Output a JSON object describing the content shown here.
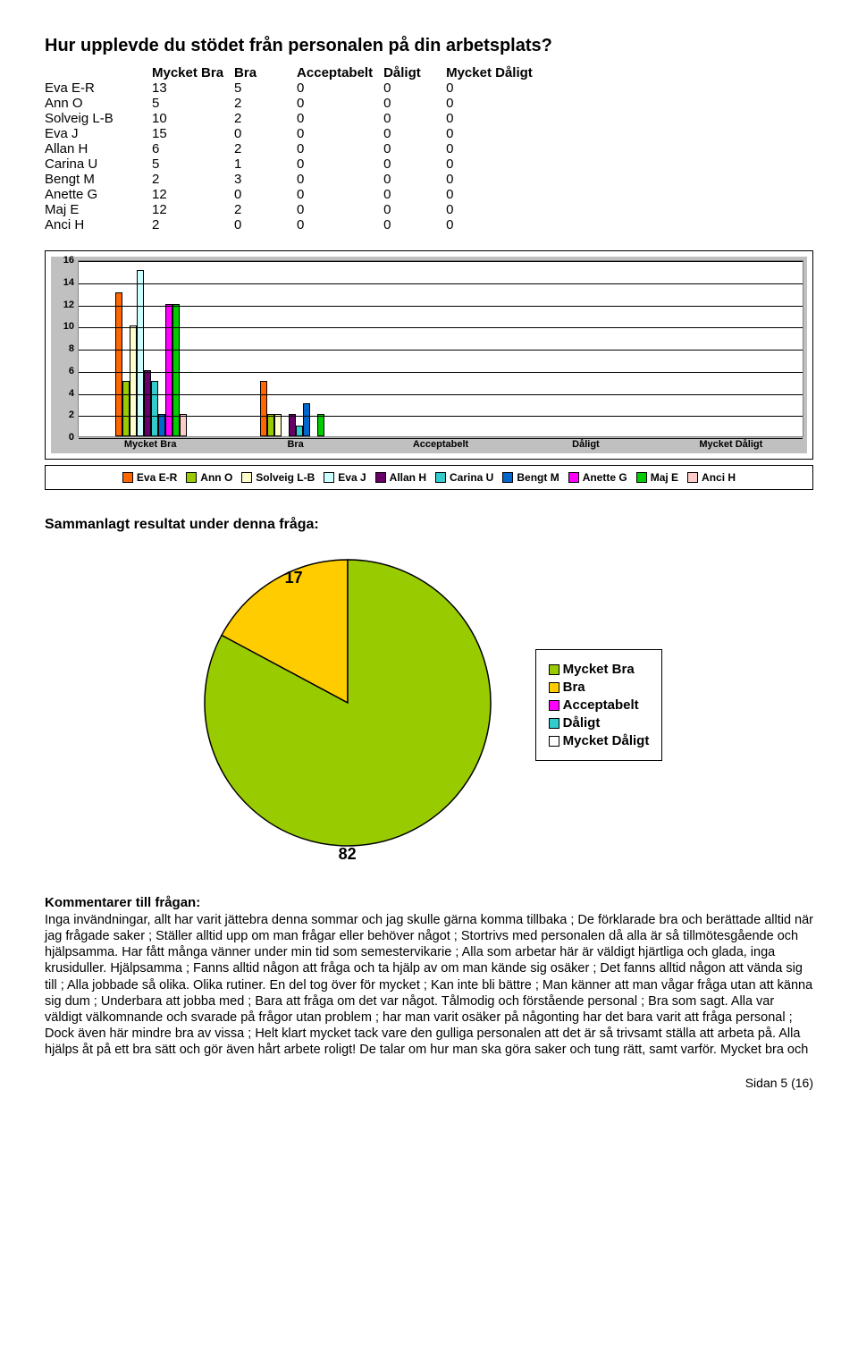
{
  "title": "Hur upplevde du stödet från personalen på din arbetsplats?",
  "table": {
    "columns": [
      "Mycket Bra",
      "Bra",
      "Acceptabelt",
      "Dåligt",
      "Mycket Dåligt"
    ],
    "rows": [
      {
        "name": "Eva E-R",
        "vals": [
          13,
          5,
          0,
          0,
          0
        ]
      },
      {
        "name": "Ann O",
        "vals": [
          5,
          2,
          0,
          0,
          0
        ]
      },
      {
        "name": "Solveig L-B",
        "vals": [
          10,
          2,
          0,
          0,
          0
        ]
      },
      {
        "name": "Eva J",
        "vals": [
          15,
          0,
          0,
          0,
          0
        ]
      },
      {
        "name": "Allan H",
        "vals": [
          6,
          2,
          0,
          0,
          0
        ]
      },
      {
        "name": "Carina U",
        "vals": [
          5,
          1,
          0,
          0,
          0
        ]
      },
      {
        "name": "Bengt M",
        "vals": [
          2,
          3,
          0,
          0,
          0
        ]
      },
      {
        "name": "Anette G",
        "vals": [
          12,
          0,
          0,
          0,
          0
        ]
      },
      {
        "name": "Maj E",
        "vals": [
          12,
          2,
          0,
          0,
          0
        ]
      },
      {
        "name": "Anci H",
        "vals": [
          2,
          0,
          0,
          0,
          0
        ]
      }
    ]
  },
  "barchart": {
    "type": "bar",
    "ymax": 16,
    "ystep": 2,
    "yticks": [
      0,
      2,
      4,
      6,
      8,
      10,
      12,
      14,
      16
    ],
    "categories": [
      "Mycket Bra",
      "Bra",
      "Acceptabelt",
      "Dåligt",
      "Mycket Dåligt"
    ],
    "series": [
      {
        "name": "Eva E-R",
        "color": "#ff6600"
      },
      {
        "name": "Ann O",
        "color": "#99cc00"
      },
      {
        "name": "Solveig L-B",
        "color": "#ffffcc"
      },
      {
        "name": "Eva J",
        "color": "#ccffff"
      },
      {
        "name": "Allan H",
        "color": "#660066"
      },
      {
        "name": "Carina U",
        "color": "#33cccc"
      },
      {
        "name": "Bengt M",
        "color": "#0066cc"
      },
      {
        "name": "Anette G",
        "color": "#ff00ff"
      },
      {
        "name": "Maj E",
        "color": "#00cc00"
      },
      {
        "name": "Anci H",
        "color": "#ffcccc"
      }
    ],
    "plot_bg": "#ffffff",
    "outer_bg": "#c0c0c0",
    "grid_color": "#000000"
  },
  "summary_title": "Sammanlagt resultat under denna fråga:",
  "pie": {
    "type": "pie",
    "slices": [
      {
        "label": "Mycket Bra",
        "value": 82,
        "color": "#99cc00"
      },
      {
        "label": "Bra",
        "value": 17,
        "color": "#ffcc00"
      },
      {
        "label": "Acceptabelt",
        "value": 0,
        "color": "#ff00ff"
      },
      {
        "label": "Dåligt",
        "value": 0,
        "color": "#33cccc"
      },
      {
        "label": "Mycket Dåligt",
        "value": 0,
        "color": "#ffffff"
      }
    ],
    "label_17": "17",
    "label_82": "82",
    "legend_labels": [
      "Mycket Bra",
      "Bra",
      "Acceptabelt",
      "Dåligt",
      "Mycket Dåligt"
    ],
    "legend_colors": [
      "#99cc00",
      "#ffcc00",
      "#ff00ff",
      "#33cccc",
      "#ffffff"
    ],
    "radius": 160,
    "stroke": "#000000"
  },
  "comments_title": "Kommentarer till frågan:",
  "comments_body": "Inga invändningar, allt har varit jättebra denna sommar och jag skulle gärna komma tillbaka ; De förklarade bra och berättade alltid när jag frågade saker ; Ställer alltid upp om man frågar eller behöver något ; Stortrivs med personalen då alla är så tillmötesgående och hjälpsamma. Har fått många vänner under min tid som semestervikarie ; Alla som arbetar här är väldigt hjärtliga och glada, inga krusiduller. Hjälpsamma ; Fanns alltid någon att fråga och ta hjälp av om man kände sig osäker ; Det fanns alltid någon att vända sig till ; Alla jobbade så olika. Olika rutiner. En del tog över för mycket ; Kan inte bli bättre ; Man känner att man vågar fråga utan att känna sig dum ; Underbara att jobba med ; Bara att fråga om det var något. Tålmodig och förstående personal ; Bra som sagt. Alla var väldigt välkomnande och svarade på frågor utan problem ; har man varit osäker på någonting har det bara varit att fråga personal ; Dock även här mindre bra av vissa ; Helt klart mycket tack vare den gulliga personalen att det är så trivsamt ställa att arbeta på. Alla hjälps åt på ett bra sätt och gör även hårt arbete roligt! De talar om hur man ska göra saker och tung rätt, samt varför. Mycket bra och",
  "footer": "Sidan 5 (16)"
}
